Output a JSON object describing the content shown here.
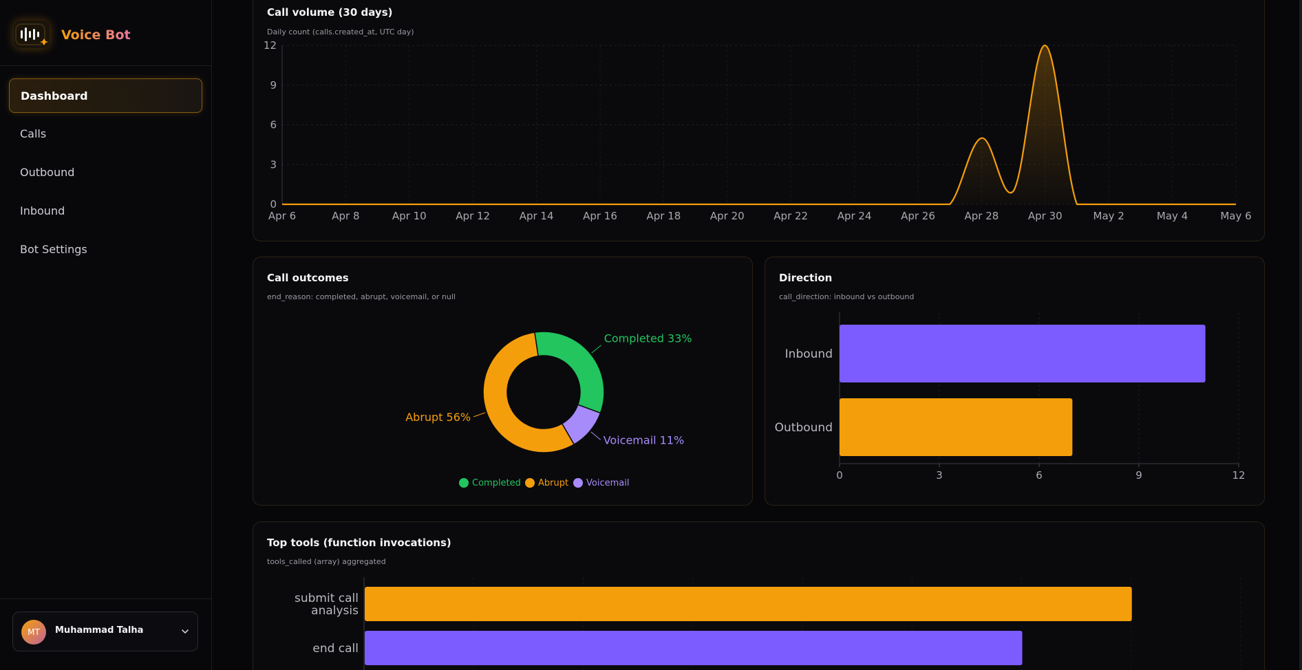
{
  "app": {
    "name": "Voice Bot"
  },
  "nav": {
    "items": [
      {
        "label": "Dashboard",
        "active": true
      },
      {
        "label": "Calls",
        "active": false
      },
      {
        "label": "Outbound",
        "active": false
      },
      {
        "label": "Inbound",
        "active": false
      },
      {
        "label": "Bot Settings",
        "active": false
      }
    ]
  },
  "user": {
    "initials": "MT",
    "name": "Muhammad Talha"
  },
  "cards": {
    "volume": {
      "title": "Call volume (30 days)",
      "subtitle": "Daily count (calls.created_at, UTC day)"
    },
    "outcomes": {
      "title": "Call outcomes",
      "subtitle": "end_reason: completed, abrupt, voicemail, or null"
    },
    "direction": {
      "title": "Direction",
      "subtitle": "call_direction: inbound vs outbound"
    },
    "tools": {
      "title": "Top tools (function invocations)",
      "subtitle": "tools_called (array) aggregated"
    }
  },
  "colors": {
    "accent": "#f59e0b",
    "purple": "#7c5cff",
    "green": "#22c55e",
    "lavender": "#a78bfa"
  },
  "chart_data": [
    {
      "type": "area",
      "title": "Call volume (30 days)",
      "x_tick_labels": [
        "Apr 6",
        "Apr 8",
        "Apr 10",
        "Apr 12",
        "Apr 14",
        "Apr 16",
        "Apr 18",
        "Apr 20",
        "Apr 22",
        "Apr 24",
        "Apr 26",
        "Apr 28",
        "Apr 30",
        "May 2",
        "May 4",
        "May 6"
      ],
      "y_ticks": [
        0,
        3,
        6,
        9,
        12
      ],
      "ylim": [
        0,
        12
      ],
      "x": [
        "Apr 6",
        "Apr 7",
        "Apr 8",
        "Apr 9",
        "Apr 10",
        "Apr 11",
        "Apr 12",
        "Apr 13",
        "Apr 14",
        "Apr 15",
        "Apr 16",
        "Apr 17",
        "Apr 18",
        "Apr 19",
        "Apr 20",
        "Apr 21",
        "Apr 22",
        "Apr 23",
        "Apr 24",
        "Apr 25",
        "Apr 26",
        "Apr 27",
        "Apr 28",
        "Apr 29",
        "Apr 30",
        "May 1",
        "May 2",
        "May 3",
        "May 4",
        "May 5",
        "May 6"
      ],
      "values": [
        0,
        0,
        0,
        0,
        0,
        0,
        0,
        0,
        0,
        0,
        0,
        0,
        0,
        0,
        0,
        0,
        0,
        0,
        0,
        0,
        0,
        0,
        5,
        1,
        12,
        0,
        0,
        0,
        0,
        0,
        0
      ],
      "color": "#f59e0b",
      "grid": true
    },
    {
      "type": "pie",
      "title": "Call outcomes",
      "labels": [
        "Completed",
        "Abrupt",
        "Voicemail"
      ],
      "values": [
        33,
        56,
        11
      ],
      "slice_labels": [
        "Completed 33%",
        "Abrupt 56%",
        "Voicemail 11%"
      ],
      "colors": [
        "#22c55e",
        "#f59e0b",
        "#a78bfa"
      ],
      "legend": "bottom"
    },
    {
      "type": "bar",
      "orientation": "horizontal",
      "title": "Direction",
      "categories": [
        "Inbound",
        "Outbound"
      ],
      "values": [
        11,
        7
      ],
      "colors": [
        "#7c5cff",
        "#f59e0b"
      ],
      "x_ticks": [
        0,
        3,
        6,
        9,
        12
      ],
      "xlim": [
        0,
        12
      ]
    },
    {
      "type": "bar",
      "orientation": "horizontal",
      "title": "Top tools (function invocations)",
      "categories": [
        [
          "submit call",
          "analysis"
        ],
        [
          "end call"
        ]
      ],
      "values": [
        21,
        18
      ],
      "colors": [
        "#f59e0b",
        "#7c5cff"
      ],
      "xlim": [
        0,
        24
      ]
    }
  ]
}
